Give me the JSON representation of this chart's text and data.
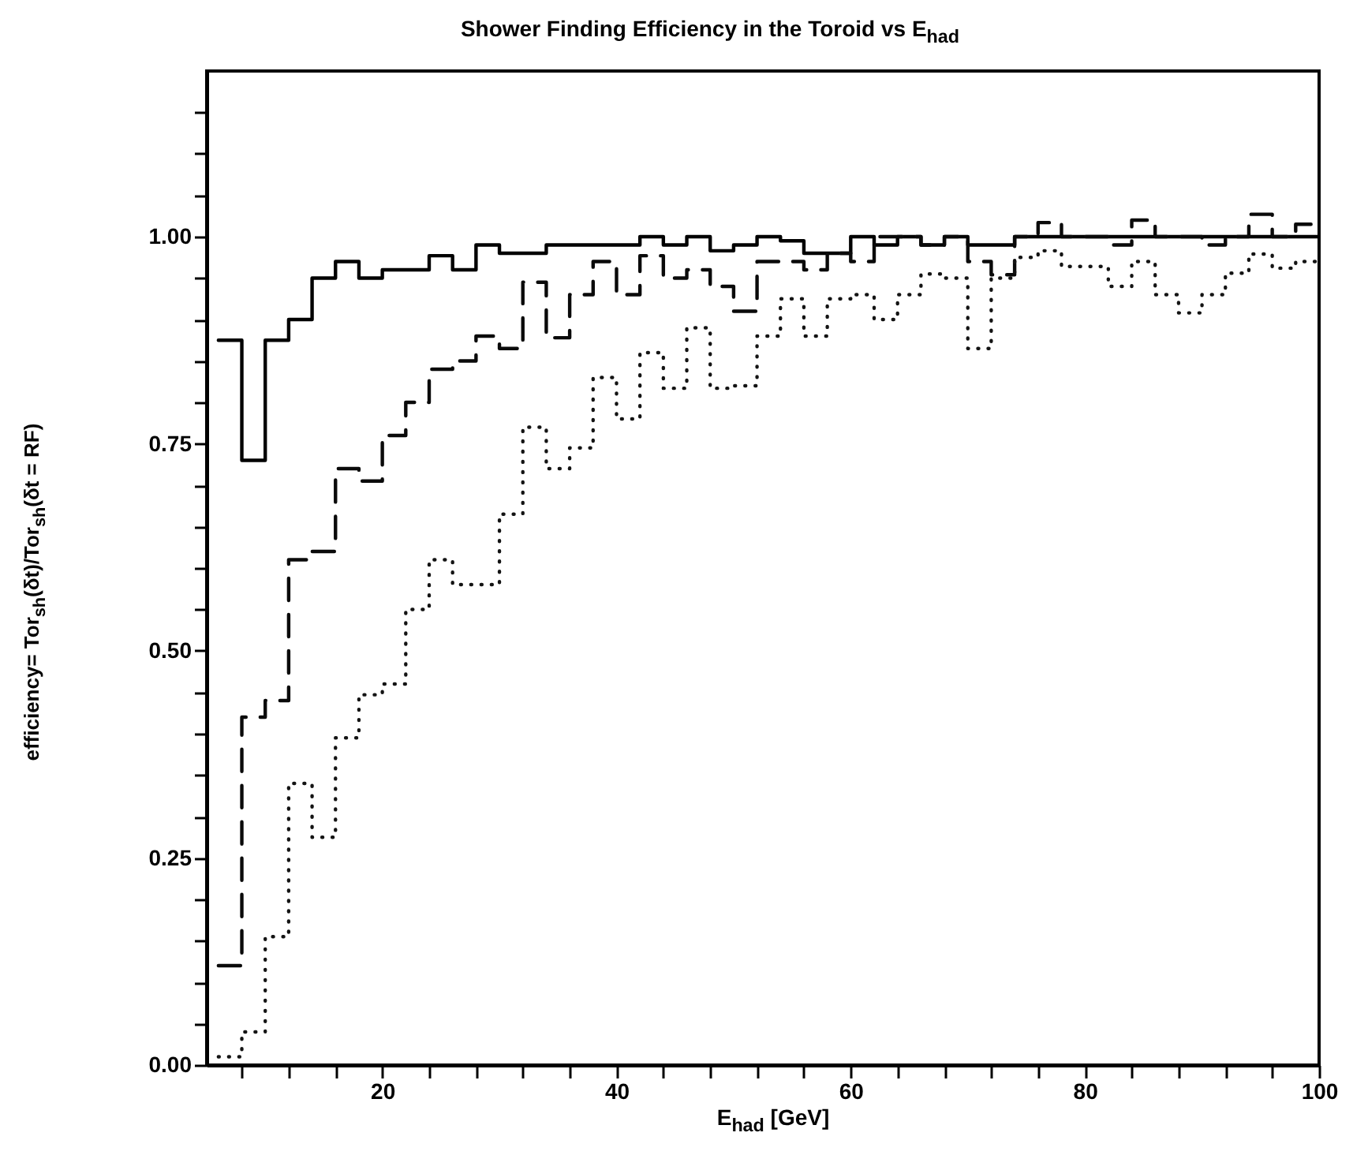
{
  "chart_data": {
    "type": "histogram",
    "title": "Shower Finding Efficiency in the Toroid vs E$_{had}$",
    "xlabel": "E$_{had}$ [GeV]",
    "ylabel": "efficiency= Tor$_{sh}$(δt)/Tor$_{sh}$(δt = RF)",
    "bins": [
      6,
      8,
      10,
      12,
      14,
      16,
      18,
      20,
      22,
      24,
      26,
      28,
      30,
      32,
      34,
      36,
      38,
      40,
      42,
      44,
      46,
      48,
      50,
      52,
      54,
      56,
      58,
      60,
      62,
      64,
      66,
      68,
      70,
      72,
      74,
      76,
      78,
      80,
      82,
      84,
      86,
      88,
      90,
      92,
      94,
      96,
      98,
      100
    ],
    "series": [
      {
        "color": "#000000",
        "line_style": "solid",
        "values": [
          0.875,
          0.73,
          0.875,
          0.9,
          0.95,
          0.97,
          0.95,
          0.96,
          0.96,
          0.977,
          0.96,
          0.99,
          0.98,
          0.98,
          0.99,
          0.99,
          0.99,
          0.99,
          1.0,
          0.99,
          1.0,
          0.983,
          0.99,
          1.0,
          0.995,
          0.98,
          0.98,
          1.0,
          0.99,
          1.0,
          0.99,
          1.0,
          0.99,
          0.99,
          1.0,
          1.0,
          1.0,
          1.0,
          1.0,
          1.0,
          1.0,
          1.0,
          1.0,
          1.0,
          1.0,
          1.0,
          1.0
        ]
      },
      {
        "color": "#0a0a0a",
        "line_style": "dashed",
        "values": [
          0.12,
          0.42,
          0.44,
          0.61,
          0.62,
          0.72,
          0.705,
          0.76,
          0.8,
          0.84,
          0.85,
          0.88,
          0.865,
          0.945,
          0.878,
          0.93,
          0.97,
          0.93,
          0.977,
          0.95,
          0.96,
          0.94,
          0.91,
          0.97,
          0.97,
          0.96,
          0.98,
          0.97,
          1.0,
          1.0,
          0.99,
          1.0,
          0.97,
          0.954,
          1.0,
          1.017,
          1.0,
          1.0,
          0.99,
          1.02,
          1.0,
          1.0,
          0.99,
          1.0,
          1.027,
          1.0,
          1.015
        ]
      },
      {
        "color": "#141414",
        "line_style": "dotted",
        "values": [
          0.01,
          0.04,
          0.155,
          0.34,
          0.275,
          0.395,
          0.447,
          0.46,
          0.55,
          0.61,
          0.58,
          0.58,
          0.665,
          0.77,
          0.72,
          0.745,
          0.83,
          0.78,
          0.86,
          0.817,
          0.89,
          0.817,
          0.82,
          0.88,
          0.925,
          0.88,
          0.925,
          0.93,
          0.9,
          0.93,
          0.955,
          0.95,
          0.865,
          0.95,
          0.975,
          0.983,
          0.964,
          0.964,
          0.94,
          0.97,
          0.93,
          0.908,
          0.93,
          0.956,
          0.979,
          0.962,
          0.97
        ]
      }
    ],
    "xlim": [
      5,
      100
    ],
    "xticks": [
      {
        "value": 8,
        "label": null
      },
      {
        "value": 12,
        "label": null
      },
      {
        "value": 16,
        "label": null
      },
      20,
      {
        "value": 24,
        "label": null
      },
      {
        "value": 28,
        "label": null
      },
      {
        "value": 32,
        "label": null
      },
      {
        "value": 36,
        "label": null
      },
      40,
      {
        "value": 44,
        "label": null
      },
      {
        "value": 48,
        "label": null
      },
      {
        "value": 52,
        "label": null
      },
      {
        "value": 56,
        "label": null
      },
      60,
      {
        "value": 64,
        "label": null
      },
      {
        "value": 68,
        "label": null
      },
      {
        "value": 72,
        "label": null
      },
      {
        "value": 76,
        "label": null
      },
      80,
      {
        "value": 84,
        "label": null
      },
      {
        "value": 88,
        "label": null
      },
      {
        "value": 92,
        "label": null
      },
      {
        "value": 96,
        "label": null
      },
      100
    ],
    "ylim": [
      0,
      1.2
    ],
    "yticks": [
      {
        "value": 0,
        "label": "0.00"
      },
      {
        "value": 0.05,
        "label": null
      },
      {
        "value": 0.1,
        "label": null
      },
      {
        "value": 0.15,
        "label": null
      },
      {
        "value": 0.2,
        "label": null
      },
      {
        "value": 0.25,
        "label": "0.25"
      },
      {
        "value": 0.3,
        "label": null
      },
      {
        "value": 0.35,
        "label": null
      },
      {
        "value": 0.4,
        "label": null
      },
      {
        "value": 0.45,
        "label": null
      },
      {
        "value": 0.5,
        "label": "0.50"
      },
      {
        "value": 0.55,
        "label": null
      },
      {
        "value": 0.6,
        "label": null
      },
      {
        "value": 0.65,
        "label": null
      },
      {
        "value": 0.7,
        "label": null
      },
      {
        "value": 0.75,
        "label": "0.75"
      },
      {
        "value": 0.8,
        "label": null
      },
      {
        "value": 0.85,
        "label": null
      },
      {
        "value": 0.9,
        "label": null
      },
      {
        "value": 0.95,
        "label": null
      },
      {
        "value": 1,
        "label": "1.00"
      },
      {
        "value": 1.05,
        "label": null
      },
      {
        "value": 1.1,
        "label": null
      },
      {
        "value": 1.15,
        "label": null
      }
    ]
  }
}
